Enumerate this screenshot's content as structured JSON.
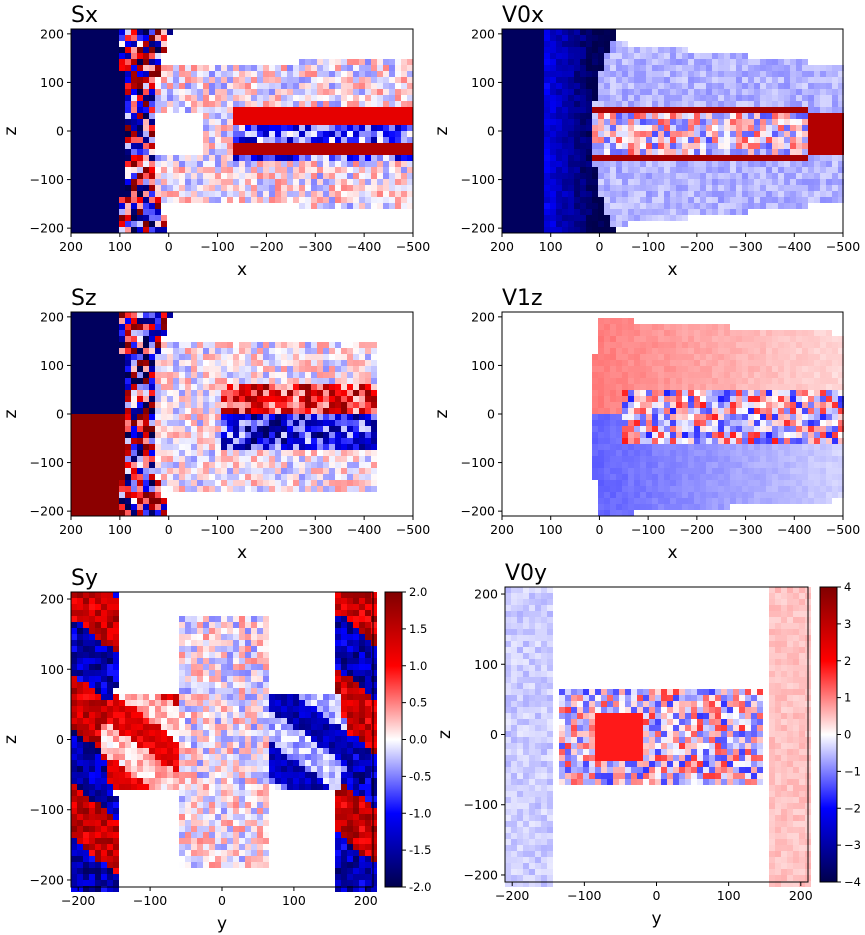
{
  "colors": {
    "negative": "#08036b",
    "neutral": "#ffffff",
    "positive": "#8c0006",
    "colormap": "seismic"
  },
  "chart_data": [
    {
      "id": "sx",
      "type": "heatmap",
      "title": "Sx",
      "xlabel": "x",
      "ylabel": "z",
      "xlim": [
        200,
        -500
      ],
      "ylim": [
        -210,
        210
      ],
      "xticks": [
        200,
        100,
        0,
        -100,
        -200,
        -300,
        -400,
        -500
      ],
      "yticks": [
        200,
        100,
        0,
        -100,
        -200
      ],
      "field": "Sx",
      "cmap": "seismic"
    },
    {
      "id": "v0x",
      "type": "heatmap",
      "title": "V0x",
      "xlabel": "x",
      "ylabel": "z",
      "xlim": [
        200,
        -500
      ],
      "ylim": [
        -210,
        210
      ],
      "xticks": [
        200,
        100,
        0,
        -100,
        -200,
        -300,
        -400,
        -500
      ],
      "yticks": [
        200,
        100,
        0,
        -100,
        -200
      ],
      "field": "V0x",
      "cmap": "seismic"
    },
    {
      "id": "sz",
      "type": "heatmap",
      "title": "Sz",
      "xlabel": "x",
      "ylabel": "z",
      "xlim": [
        200,
        -500
      ],
      "ylim": [
        -210,
        210
      ],
      "xticks": [
        200,
        100,
        0,
        -100,
        -200,
        -300,
        -400,
        -500
      ],
      "yticks": [
        200,
        100,
        0,
        -100,
        -200
      ],
      "field": "Sz",
      "cmap": "seismic"
    },
    {
      "id": "v1z",
      "type": "heatmap",
      "title": "V1z",
      "xlabel": "x",
      "ylabel": "z",
      "xlim": [
        200,
        -500
      ],
      "ylim": [
        -210,
        210
      ],
      "xticks": [
        200,
        100,
        0,
        -100,
        -200,
        -300,
        -400,
        -500
      ],
      "yticks": [
        200,
        100,
        0,
        -100,
        -200
      ],
      "field": "V1z",
      "cmap": "seismic"
    },
    {
      "id": "sy",
      "type": "heatmap",
      "title": "Sy",
      "xlabel": "y",
      "ylabel": "z",
      "xlim": [
        -210,
        210
      ],
      "ylim": [
        -210,
        210
      ],
      "xticks": [
        -200,
        -100,
        0,
        100,
        200
      ],
      "yticks": [
        200,
        100,
        0,
        -100,
        -200
      ],
      "field": "Sy",
      "cmap": "seismic",
      "colorbar": {
        "min": -2.0,
        "max": 2.0,
        "ticks": [
          2.0,
          1.5,
          1.0,
          0.5,
          0.0,
          -0.5,
          -1.0,
          -1.5,
          -2.0
        ],
        "tick_labels": [
          "2.0",
          "1.5",
          "1.0",
          "0.5",
          "0.0",
          "-0.5",
          "-1.0",
          "-1.5",
          "-2.0"
        ]
      }
    },
    {
      "id": "v0y",
      "type": "heatmap",
      "title": "V0y",
      "xlabel": "y",
      "ylabel": "z",
      "xlim": [
        -210,
        210
      ],
      "ylim": [
        -210,
        210
      ],
      "xticks": [
        -200,
        -100,
        0,
        100,
        200
      ],
      "yticks": [
        200,
        100,
        0,
        -100,
        -200
      ],
      "field": "V0y",
      "cmap": "seismic",
      "colorbar": {
        "min": -4,
        "max": 4,
        "ticks": [
          4,
          3,
          2,
          1,
          0,
          -1,
          -2,
          -3,
          -4
        ],
        "tick_labels": [
          "4",
          "3",
          "2",
          "1",
          "0",
          "−1",
          "−2",
          "−3",
          "−4"
        ]
      }
    }
  ]
}
